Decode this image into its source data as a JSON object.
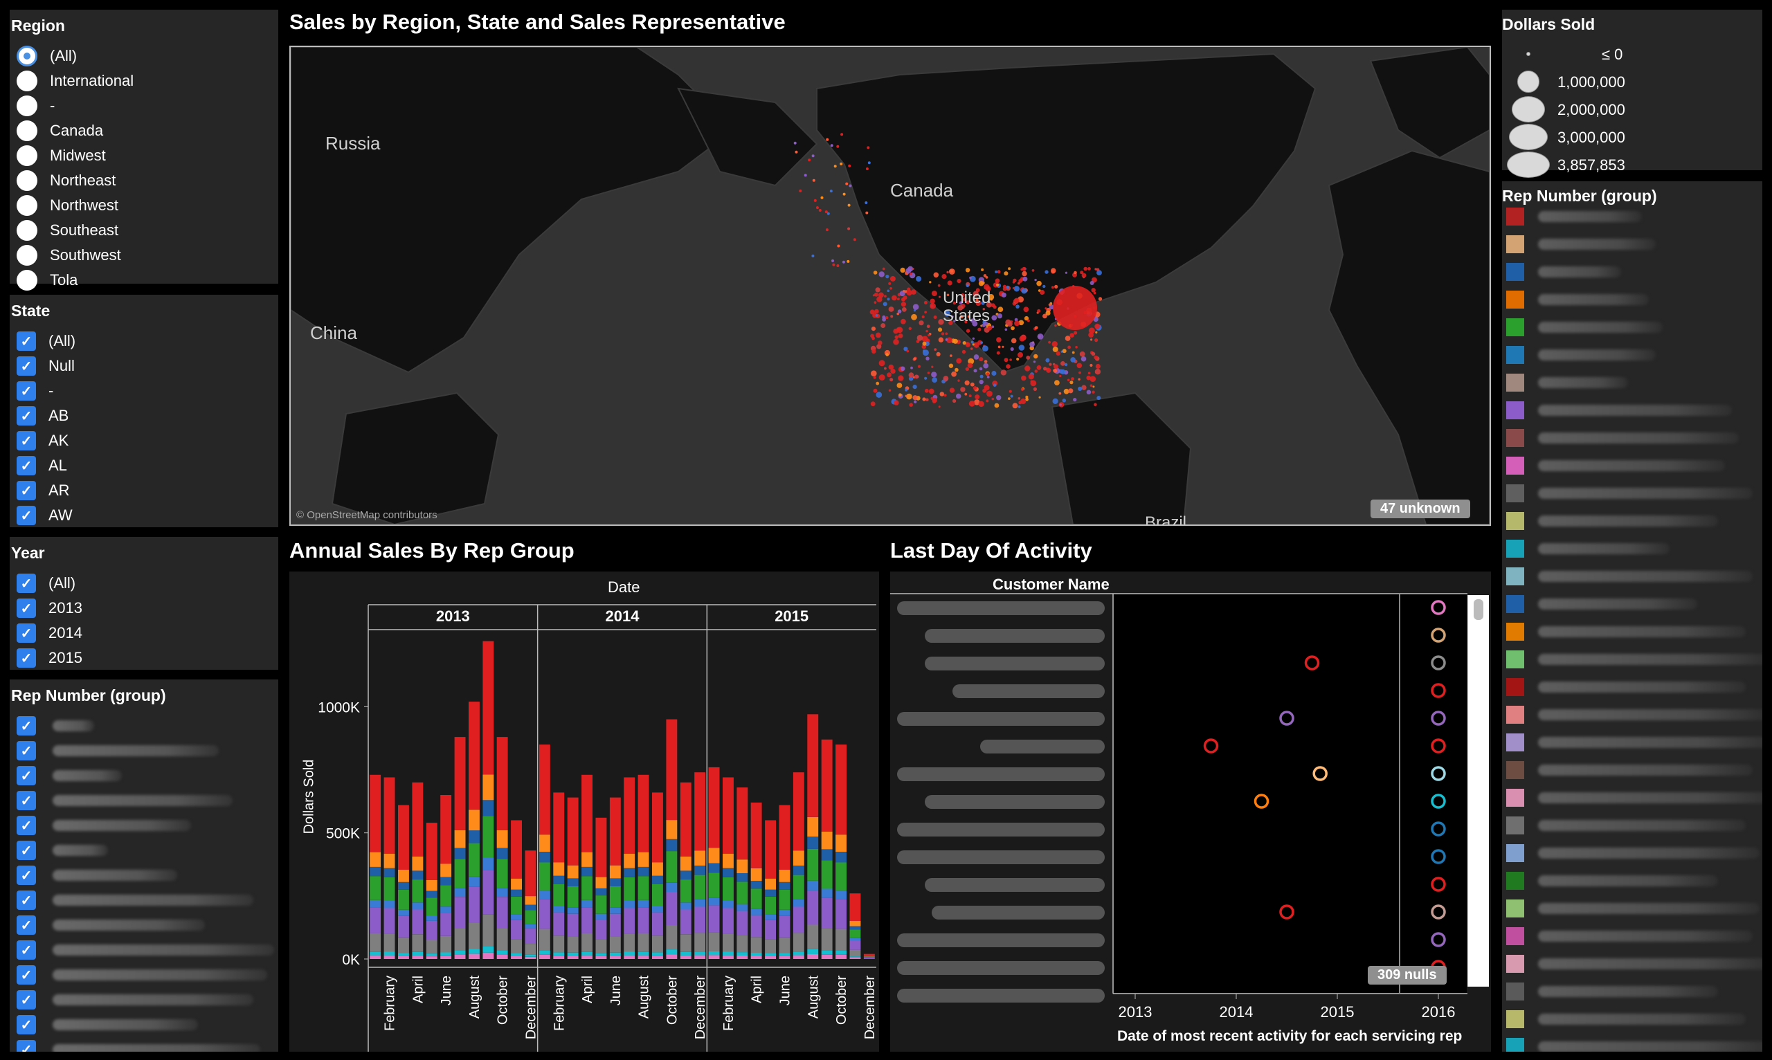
{
  "filters": {
    "region": {
      "title": "Region",
      "selected_index": 0,
      "options": [
        "(All)",
        "International",
        "-",
        "Canada",
        "Midwest",
        "Northeast",
        "Northwest",
        "Southeast",
        "Southwest",
        "Tola"
      ]
    },
    "state": {
      "title": "State",
      "options": [
        "(All)",
        "Null",
        "-",
        "AB",
        "AK",
        "AL",
        "AR",
        "AW"
      ]
    },
    "year": {
      "title": "Year",
      "options": [
        "(All)",
        "2013",
        "2014",
        "2015"
      ]
    },
    "rep_group": {
      "title": "Rep Number (group)"
    }
  },
  "map": {
    "title": "Sales by Region, State and Sales Representative",
    "labels": {
      "russia": "Russia",
      "canada": "Canada",
      "china": "China",
      "us": "United States",
      "brazil": "Brazil"
    },
    "attribution": "© OpenStreetMap contributors",
    "unknown_badge": "47 unknown"
  },
  "bar_chart": {
    "title": "Annual Sales By Rep Group",
    "column_header": "Date",
    "years": [
      "2013",
      "2014",
      "2015"
    ],
    "month_labels": [
      "February",
      "April",
      "June",
      "August",
      "October",
      "December"
    ],
    "y_axis_title": "Dollars Sold",
    "y_ticks": [
      "1000K",
      "500K",
      "0K"
    ]
  },
  "chart_data": {
    "type": "bar",
    "stacked": true,
    "title": "Annual Sales By Rep Group",
    "ylabel": "Dollars Sold",
    "ylim": [
      0,
      1300000
    ],
    "categories": [
      "2013-01",
      "2013-02",
      "2013-03",
      "2013-04",
      "2013-05",
      "2013-06",
      "2013-07",
      "2013-08",
      "2013-09",
      "2013-10",
      "2013-11",
      "2013-12",
      "2014-01",
      "2014-02",
      "2014-03",
      "2014-04",
      "2014-05",
      "2014-06",
      "2014-07",
      "2014-08",
      "2014-09",
      "2014-10",
      "2014-11",
      "2014-12",
      "2015-01",
      "2015-02",
      "2015-03",
      "2015-04",
      "2015-05",
      "2015-06",
      "2015-07",
      "2015-08",
      "2015-09",
      "2015-10",
      "2015-11",
      "2015-12"
    ],
    "totals": [
      730000,
      720000,
      610000,
      700000,
      540000,
      650000,
      880000,
      1020000,
      1260000,
      880000,
      550000,
      430000,
      850000,
      660000,
      640000,
      730000,
      560000,
      640000,
      720000,
      730000,
      660000,
      950000,
      700000,
      740000,
      760000,
      720000,
      680000,
      620000,
      550000,
      610000,
      740000,
      970000,
      870000,
      850000,
      260000,
      20000
    ],
    "series": [
      {
        "name": "red",
        "color": "#e02020",
        "share": 0.42
      },
      {
        "name": "orange",
        "color": "#ff8c1a",
        "share": 0.08
      },
      {
        "name": "blue",
        "color": "#1f5fa8",
        "share": 0.05
      },
      {
        "name": "green",
        "color": "#2ca02c",
        "share": 0.13
      },
      {
        "name": "light-blue",
        "color": "#3a7bd5",
        "share": 0.04
      },
      {
        "name": "purple",
        "color": "#8c5cc8",
        "share": 0.14
      },
      {
        "name": "gray",
        "color": "#7f7f7f",
        "share": 0.1
      },
      {
        "name": "cyan",
        "color": "#17becf",
        "share": 0.02
      },
      {
        "name": "pink",
        "color": "#e377c2",
        "share": 0.02
      }
    ]
  },
  "activity": {
    "title": "Last Day Of Activity",
    "column_header": "Customer Name",
    "x_ticks": [
      "2013",
      "2014",
      "2015",
      "2016"
    ],
    "x_axis_title": "Date of most recent activity for each servicing rep",
    "nulls_badge": "309 nulls"
  },
  "activity_points": [
    {
      "row": 0,
      "year": 2016.0,
      "color": "#e377c2"
    },
    {
      "row": 1,
      "year": 2016.0,
      "color": "#d4a373"
    },
    {
      "row": 2,
      "year": 2014.75,
      "color": "#e02020"
    },
    {
      "row": 2,
      "year": 2016.0,
      "color": "#8c8c8c"
    },
    {
      "row": 3,
      "year": 2016.0,
      "color": "#e02020"
    },
    {
      "row": 4,
      "year": 2014.5,
      "color": "#9467bd"
    },
    {
      "row": 4,
      "year": 2016.0,
      "color": "#9467bd"
    },
    {
      "row": 5,
      "year": 2013.75,
      "color": "#e02020"
    },
    {
      "row": 5,
      "year": 2016.0,
      "color": "#e02020"
    },
    {
      "row": 6,
      "year": 2014.83,
      "color": "#ffbb78"
    },
    {
      "row": 6,
      "year": 2016.0,
      "color": "#9edae5"
    },
    {
      "row": 7,
      "year": 2014.25,
      "color": "#ff7f0e"
    },
    {
      "row": 7,
      "year": 2016.0,
      "color": "#17becf"
    },
    {
      "row": 8,
      "year": 2016.0,
      "color": "#1f77b4"
    },
    {
      "row": 9,
      "year": 2016.0,
      "color": "#1f77b4"
    },
    {
      "row": 10,
      "year": 2016.0,
      "color": "#e02020"
    },
    {
      "row": 11,
      "year": 2014.5,
      "color": "#e02020"
    },
    {
      "row": 11,
      "year": 2016.0,
      "color": "#c49c94"
    },
    {
      "row": 12,
      "year": 2016.0,
      "color": "#9467bd"
    },
    {
      "row": 13,
      "year": 2016.0,
      "color": "#e02020"
    }
  ],
  "size_legend": {
    "title": "Dollars Sold",
    "entries": [
      "≤ 0",
      "1,000,000",
      "2,000,000",
      "3,000,000",
      "3,857,853"
    ]
  },
  "color_legend": {
    "title": "Rep Number (group)",
    "colors": [
      "#b22222",
      "#d4a373",
      "#1f5fa8",
      "#e06c00",
      "#2ca02c",
      "#1f77b4",
      "#a1887f",
      "#8c5cc8",
      "#8b4a4a",
      "#d45fb8",
      "#5f5f5f",
      "#b5b86b",
      "#17a2b8",
      "#7fb3bf",
      "#1f5fa8",
      "#e07b00",
      "#6fbf6f",
      "#a31515",
      "#e08080",
      "#a08fc8",
      "#6d4c41",
      "#d88fb0",
      "#6f6f6f",
      "#7f9fcf",
      "#207a20",
      "#8fbf70",
      "#c04fa0",
      "#d89aaf",
      "#5a5a5a",
      "#b8b86b",
      "#17a2b8"
    ]
  }
}
